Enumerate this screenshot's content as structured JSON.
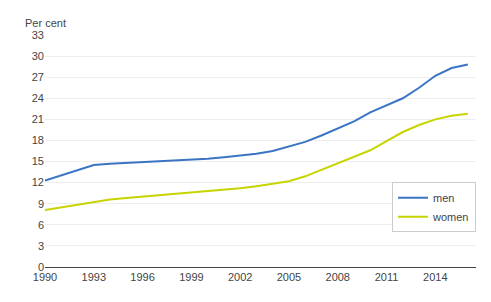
{
  "chart_data": {
    "type": "line",
    "ylabel": "Per cent",
    "x": [
      1990,
      1991,
      1992,
      1993,
      1994,
      1995,
      1996,
      1997,
      1998,
      1999,
      2000,
      2001,
      2002,
      2003,
      2004,
      2005,
      2006,
      2007,
      2008,
      2009,
      2010,
      2011,
      2012,
      2013,
      2014,
      2015,
      2016
    ],
    "series": [
      {
        "name": "men",
        "color": "#3A75C4",
        "values": [
          12.3,
          13.0,
          13.7,
          14.5,
          14.7,
          14.8,
          14.9,
          15.0,
          15.1,
          15.2,
          15.4,
          15.6,
          15.8,
          16.1,
          16.5,
          17.1,
          17.8,
          18.7,
          19.7,
          20.7,
          22.0,
          23.0,
          24.0,
          25.5,
          27.2,
          28.3,
          28.8
        ]
      },
      {
        "name": "women",
        "color": "#C8D400",
        "values": [
          8.1,
          8.5,
          8.9,
          9.3,
          9.6,
          9.8,
          10.0,
          10.2,
          10.3,
          10.5,
          10.7,
          10.9,
          11.2,
          11.5,
          11.8,
          12.2,
          12.9,
          13.8,
          14.8,
          15.6,
          16.6,
          17.9,
          19.2,
          20.2,
          21.0,
          21.5,
          21.8
        ]
      }
    ],
    "xlim": [
      1990,
      2016.5
    ],
    "xticks": [
      1990,
      1993,
      1996,
      1999,
      2002,
      2005,
      2008,
      2011,
      2014
    ],
    "ylim": [
      0,
      33
    ],
    "yticks": [
      0,
      3,
      6,
      9,
      12,
      15,
      18,
      21,
      24,
      27,
      30,
      33
    ],
    "grid": "y",
    "legend": "lower right"
  }
}
